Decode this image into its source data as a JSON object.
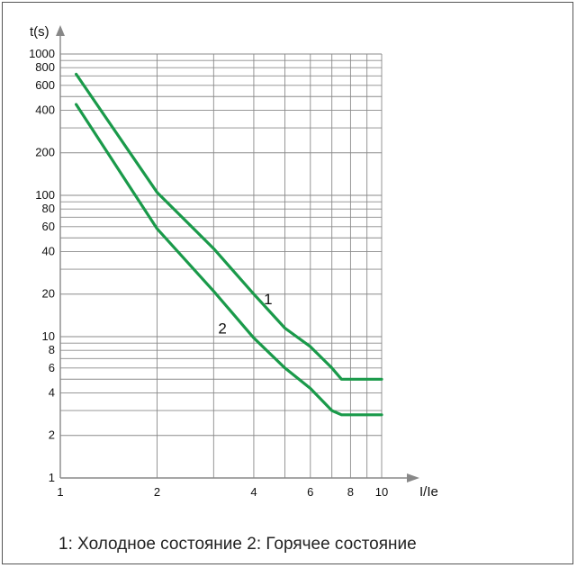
{
  "chart_data": {
    "type": "line",
    "xlabel": "I/Ie",
    "ylabel": "t(s)",
    "x_scale": "log",
    "y_scale": "log",
    "xlim": [
      1,
      10
    ],
    "ylim": [
      1,
      1000
    ],
    "x_ticks": [
      1,
      2,
      4,
      6,
      8,
      10
    ],
    "x_gridlines": [
      2,
      3,
      4,
      5,
      6,
      7,
      8,
      9,
      10
    ],
    "y_ticks": [
      1,
      2,
      4,
      6,
      8,
      10,
      20,
      40,
      60,
      80,
      100,
      200,
      400,
      600,
      800,
      1000
    ],
    "y_gridlines": [
      2,
      3,
      4,
      5,
      6,
      7,
      8,
      9,
      10,
      20,
      30,
      40,
      50,
      60,
      70,
      80,
      90,
      100,
      200,
      300,
      400,
      500,
      600,
      700,
      800,
      900,
      1000
    ],
    "grid": true,
    "series": [
      {
        "name": "1",
        "color": "#1a9a4a",
        "x": [
          1.12,
          1.6,
          2.0,
          3.0,
          4.0,
          5.0,
          6.0,
          7.0,
          7.5,
          10.0
        ],
        "y": [
          720,
          220,
          105,
          42,
          20,
          11.5,
          8.5,
          6.0,
          5.0,
          5.0
        ]
      },
      {
        "name": "2",
        "color": "#1a9a4a",
        "x": [
          1.12,
          2.0,
          3.0,
          4.0,
          5.0,
          6.0,
          7.0,
          7.5,
          10.0
        ],
        "y": [
          440,
          58,
          21,
          9.8,
          6.0,
          4.3,
          3.0,
          2.8,
          2.8
        ]
      }
    ],
    "curve_labels": [
      {
        "text": "1",
        "x": 4.3,
        "y": 17
      },
      {
        "text": "2",
        "x": 3.1,
        "y": 10.5
      }
    ],
    "caption": "1: Холодное состояние 2: Горячее состояние"
  }
}
